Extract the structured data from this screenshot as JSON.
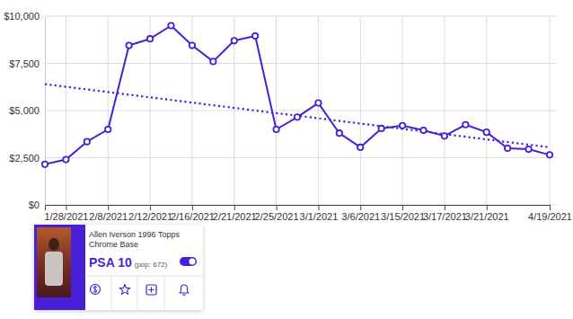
{
  "chart_data": {
    "type": "line",
    "categories": [
      null,
      "1/28/2021",
      null,
      "2/8/2021",
      null,
      "2/12/2021",
      null,
      "2/16/2021",
      null,
      "2/21/2021",
      null,
      "2/25/2021",
      null,
      "3/1/2021",
      null,
      "3/6/2021",
      null,
      "3/15/2021",
      null,
      "3/17/2021",
      null,
      "3/21/2021",
      null,
      null,
      "4/19/2021"
    ],
    "series": [
      {
        "color": "#4a1fd8",
        "marker": "circle",
        "line_style": "solid",
        "values": [
          2150,
          2400,
          3350,
          4000,
          8450,
          8800,
          9500,
          8450,
          7600,
          8700,
          8950,
          4000,
          4650,
          5400,
          3800,
          3050,
          4050,
          4200,
          3950,
          3650,
          4250,
          3850,
          3000,
          2950,
          2650
        ]
      },
      {
        "color": "#4a1fd8",
        "marker": "none",
        "line_style": "dotted",
        "values": [
          6400,
          6260,
          6120,
          5980,
          5840,
          5700,
          5560,
          5420,
          5280,
          5140,
          5000,
          4860,
          4730,
          4590,
          4450,
          4310,
          4170,
          4030,
          3890,
          3750,
          3610,
          3470,
          3330,
          3190,
          3050
        ]
      }
    ],
    "ylim": [
      0,
      10000
    ],
    "yticks": [
      {
        "value": 0,
        "label": "$0"
      },
      {
        "value": 2500,
        "label": "$2,500"
      },
      {
        "value": 5000,
        "label": "$5,000"
      },
      {
        "value": 7500,
        "label": "$7,500"
      },
      {
        "value": 10000,
        "label": "$10,000"
      }
    ],
    "grid": true
  },
  "card": {
    "title": "Allen Iverson 1996 Topps Chrome Base",
    "grade": "PSA 10",
    "pop": "(pop: 672)"
  }
}
